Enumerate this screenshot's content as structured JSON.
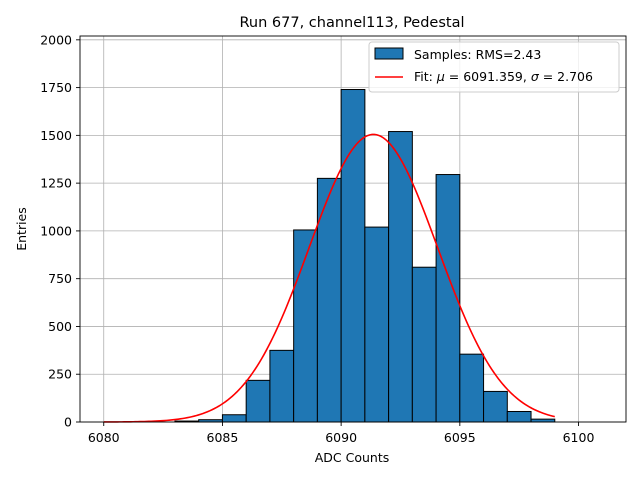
{
  "chart_data": {
    "type": "bar",
    "title": "Run 677, channel113, Pedestal",
    "xlabel": "ADC Counts",
    "ylabel": "Entries",
    "xlim": [
      6079,
      6102
    ],
    "ylim": [
      0,
      2020
    ],
    "xticks": [
      6080,
      6085,
      6090,
      6095,
      6100
    ],
    "yticks": [
      0,
      250,
      500,
      750,
      1000,
      1250,
      1500,
      1750,
      2000
    ],
    "grid": true,
    "legend_position": "top-right",
    "bin_width": 1,
    "bins": [
      {
        "x": 6083,
        "value": 5
      },
      {
        "x": 6084,
        "value": 12
      },
      {
        "x": 6085,
        "value": 38
      },
      {
        "x": 6086,
        "value": 218
      },
      {
        "x": 6087,
        "value": 375
      },
      {
        "x": 6088,
        "value": 1005
      },
      {
        "x": 6089,
        "value": 1275
      },
      {
        "x": 6090,
        "value": 1740
      },
      {
        "x": 6091,
        "value": 1020
      },
      {
        "x": 6092,
        "value": 1520
      },
      {
        "x": 6093,
        "value": 810
      },
      {
        "x": 6094,
        "value": 1295
      },
      {
        "x": 6095,
        "value": 355
      },
      {
        "x": 6096,
        "value": 160
      },
      {
        "x": 6097,
        "value": 55
      },
      {
        "x": 6098,
        "value": 15
      }
    ],
    "fit": {
      "mu": 6091.359,
      "sigma": 2.706,
      "amplitude": 1505,
      "x_range": [
        6080,
        6099
      ]
    },
    "bar_color": "#1f77b4",
    "fit_color": "#ff0000",
    "legend": {
      "hist_label": "Samples: RMS=2.43",
      "fit_prefix": "Fit: ",
      "mu_symbol": "μ",
      "mu_text": " = 6091.359, ",
      "sigma_symbol": "σ",
      "sigma_text": " = 2.706"
    }
  }
}
